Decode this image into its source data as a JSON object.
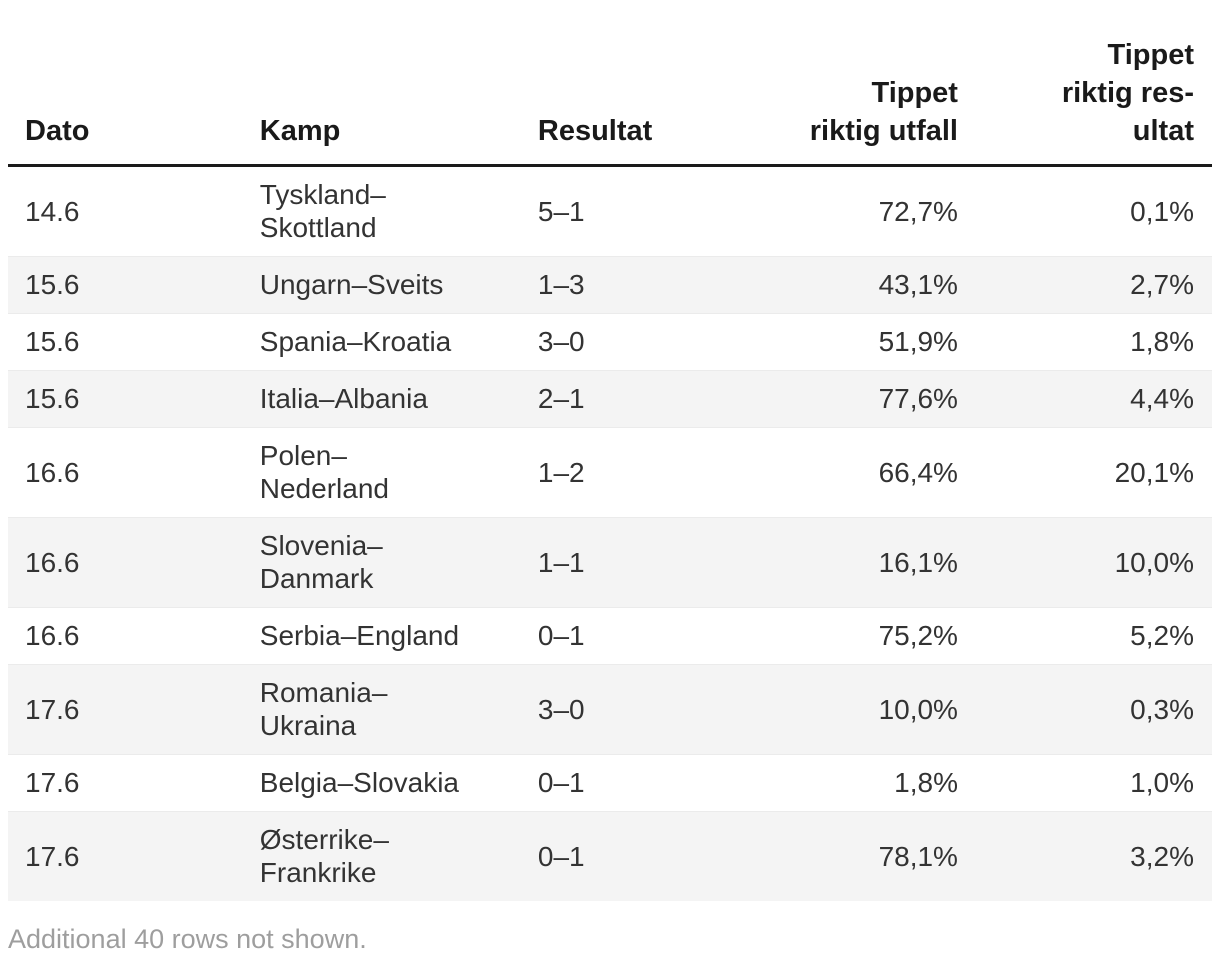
{
  "chart_data": {
    "type": "table",
    "columns": [
      {
        "label": "Dato",
        "align": "left"
      },
      {
        "label": "Kamp",
        "align": "left"
      },
      {
        "label": "Resultat",
        "align": "left"
      },
      {
        "label": "Tippet\nriktig utfall",
        "align": "right"
      },
      {
        "label": "Tippet\nriktig res-\nultat",
        "align": "right"
      }
    ],
    "rows": [
      {
        "dato": "14.6",
        "kamp": "Tyskland–\nSkottland",
        "resultat": "5–1",
        "tippet_riktig_utfall": "72,7%",
        "tippet_riktig_resultat": "0,1%"
      },
      {
        "dato": "15.6",
        "kamp": "Ungarn–Sveits",
        "resultat": "1–3",
        "tippet_riktig_utfall": "43,1%",
        "tippet_riktig_resultat": "2,7%"
      },
      {
        "dato": "15.6",
        "kamp": "Spania–Kroatia",
        "resultat": "3–0",
        "tippet_riktig_utfall": "51,9%",
        "tippet_riktig_resultat": "1,8%"
      },
      {
        "dato": "15.6",
        "kamp": "Italia–Albania",
        "resultat": "2–1",
        "tippet_riktig_utfall": "77,6%",
        "tippet_riktig_resultat": "4,4%"
      },
      {
        "dato": "16.6",
        "kamp": "Polen–\nNederland",
        "resultat": "1–2",
        "tippet_riktig_utfall": "66,4%",
        "tippet_riktig_resultat": "20,1%"
      },
      {
        "dato": "16.6",
        "kamp": "Slovenia–\nDanmark",
        "resultat": "1–1",
        "tippet_riktig_utfall": "16,1%",
        "tippet_riktig_resultat": "10,0%"
      },
      {
        "dato": "16.6",
        "kamp": "Serbia–England",
        "resultat": "0–1",
        "tippet_riktig_utfall": "75,2%",
        "tippet_riktig_resultat": "5,2%"
      },
      {
        "dato": "17.6",
        "kamp": "Romania–\nUkraina",
        "resultat": "3–0",
        "tippet_riktig_utfall": "10,0%",
        "tippet_riktig_resultat": "0,3%"
      },
      {
        "dato": "17.6",
        "kamp": "Belgia–Slovakia",
        "resultat": "0–1",
        "tippet_riktig_utfall": "1,8%",
        "tippet_riktig_resultat": "1,0%"
      },
      {
        "dato": "17.6",
        "kamp": "Østerrike–\nFrankrike",
        "resultat": "0–1",
        "tippet_riktig_utfall": "78,1%",
        "tippet_riktig_resultat": "3,2%"
      }
    ],
    "footnote": "Additional 40 rows not shown."
  },
  "footer": {
    "note": "Additional 40 rows not shown."
  },
  "colors": {
    "stripe": "#f4f4f4",
    "header_rule": "#1a1a1a",
    "body_text": "#333333",
    "footer_text": "#9e9e9e"
  }
}
